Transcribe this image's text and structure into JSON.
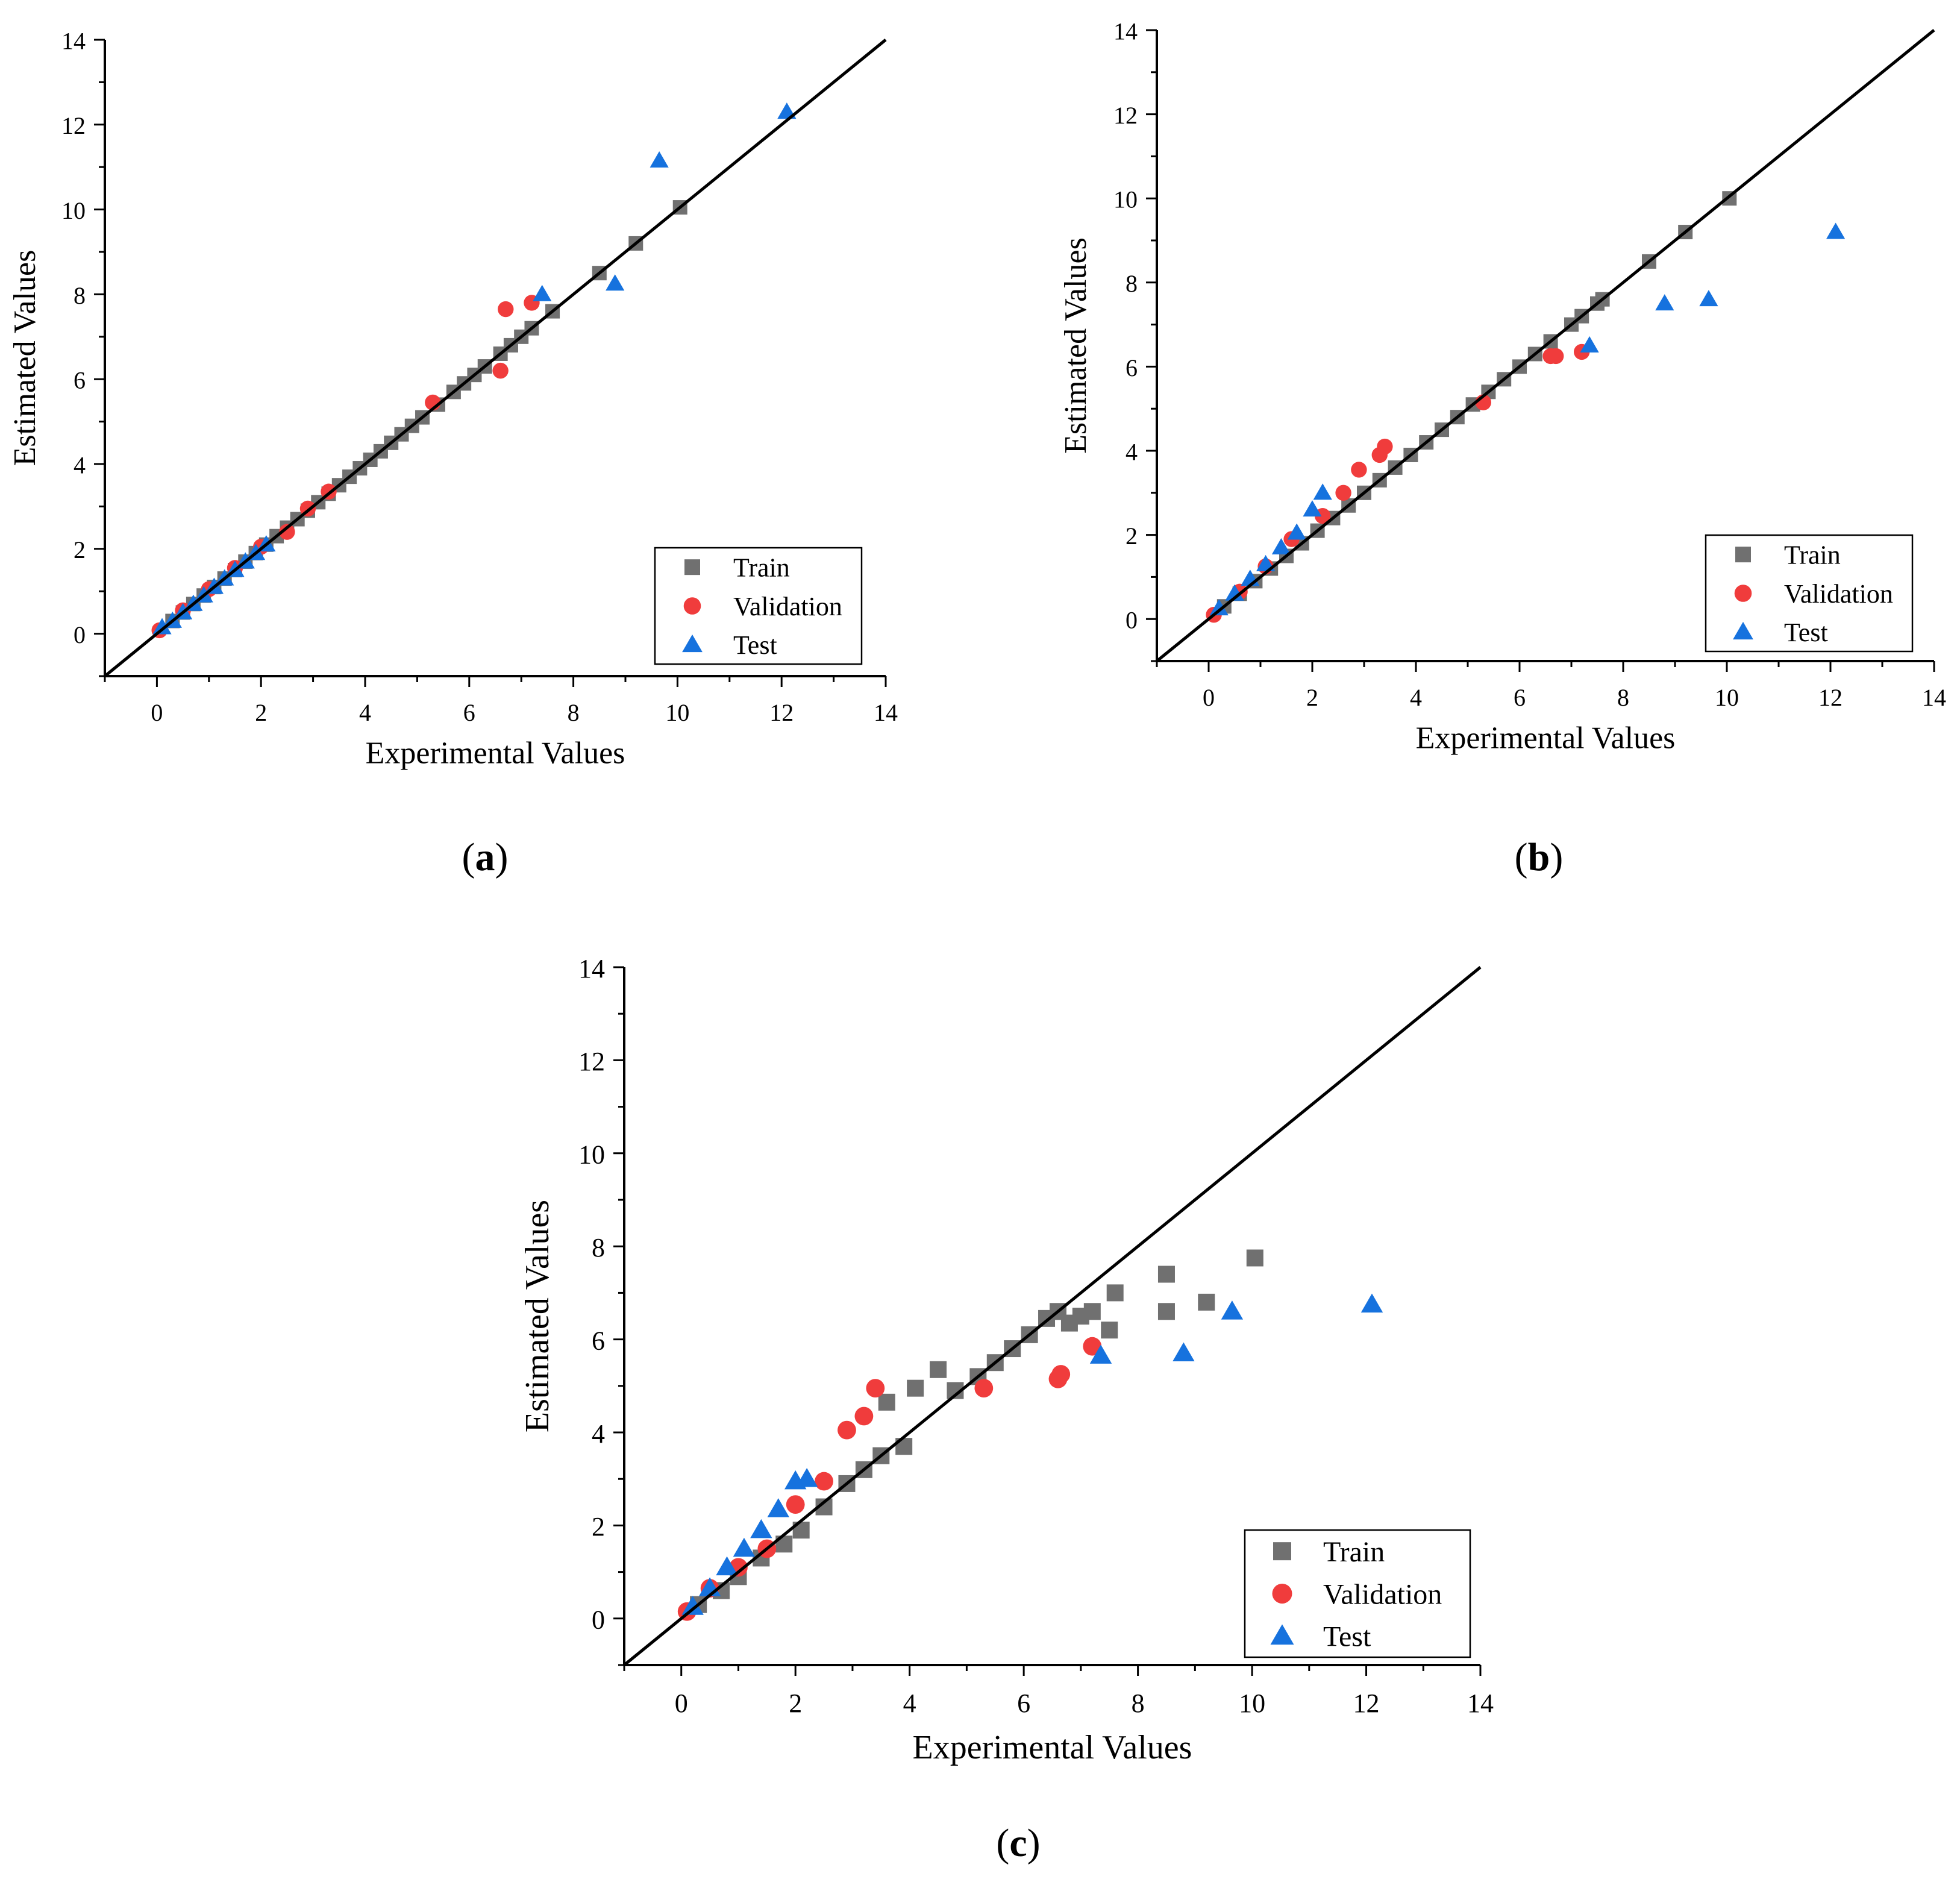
{
  "figure": {
    "colors": {
      "train": "#707070",
      "validation": "#f03c3c",
      "test": "#1672de",
      "axis": "#000000"
    },
    "icons": {
      "train": "square-marker-icon",
      "validation": "circle-marker-icon",
      "test": "triangle-marker-icon"
    }
  },
  "chart_data": [
    {
      "type": "scatter",
      "panel_label": "(a)",
      "panel_letter": "a",
      "xlabel": "Experimental Values",
      "ylabel": "Estimated Values",
      "xlim": [
        -1,
        14
      ],
      "ylim": [
        -1,
        14
      ],
      "xticks": [
        0,
        2,
        4,
        6,
        8,
        10,
        12,
        14
      ],
      "yticks": [
        0,
        2,
        4,
        6,
        8,
        10,
        12,
        14
      ],
      "reference_line": "y = x",
      "legend": [
        "Train",
        "Validation",
        "Test"
      ],
      "legend_position": "bottom-right",
      "series": [
        {
          "name": "Train",
          "marker": "square",
          "x": [
            0.3,
            0.5,
            0.7,
            0.9,
            1.1,
            1.3,
            1.5,
            1.7,
            1.9,
            2.1,
            2.3,
            2.5,
            2.7,
            2.9,
            3.1,
            3.3,
            3.5,
            3.7,
            3.9,
            4.1,
            4.3,
            4.5,
            4.7,
            4.9,
            5.1,
            5.4,
            5.7,
            5.9,
            6.1,
            6.3,
            6.6,
            6.8,
            7.0,
            7.2,
            7.6,
            8.5,
            9.2,
            10.05
          ],
          "y": [
            0.3,
            0.5,
            0.7,
            0.9,
            1.1,
            1.3,
            1.5,
            1.7,
            1.9,
            2.1,
            2.3,
            2.5,
            2.7,
            2.9,
            3.1,
            3.3,
            3.5,
            3.7,
            3.9,
            4.1,
            4.3,
            4.5,
            4.7,
            4.9,
            5.1,
            5.4,
            5.7,
            5.9,
            6.1,
            6.3,
            6.6,
            6.8,
            7.0,
            7.2,
            7.6,
            8.5,
            9.2,
            10.05
          ]
        },
        {
          "name": "Validation",
          "marker": "circle",
          "x": [
            0.05,
            0.5,
            1.0,
            1.5,
            2.0,
            2.5,
            2.9,
            3.3,
            5.3,
            6.6,
            6.7,
            7.2
          ],
          "y": [
            0.08,
            0.55,
            1.05,
            1.55,
            2.05,
            2.4,
            2.95,
            3.35,
            5.45,
            6.2,
            7.65,
            7.8
          ]
        },
        {
          "name": "Test",
          "marker": "triangle",
          "x": [
            0.1,
            0.3,
            0.5,
            0.7,
            0.9,
            1.1,
            1.3,
            1.5,
            1.7,
            1.9,
            2.1,
            7.4,
            8.8,
            9.65,
            12.1
          ],
          "y": [
            0.15,
            0.3,
            0.5,
            0.7,
            0.9,
            1.1,
            1.3,
            1.5,
            1.7,
            1.9,
            2.1,
            8.0,
            8.25,
            11.15,
            12.3
          ]
        }
      ]
    },
    {
      "type": "scatter",
      "panel_label": "(b)",
      "panel_letter": "b",
      "xlabel": "Experimental Values",
      "ylabel": "Estimated Values",
      "xlim": [
        -1,
        14
      ],
      "ylim": [
        -1,
        14
      ],
      "xticks": [
        0,
        2,
        4,
        6,
        8,
        10,
        12,
        14
      ],
      "yticks": [
        0,
        2,
        4,
        6,
        8,
        10,
        12,
        14
      ],
      "reference_line": "y = x",
      "legend": [
        "Train",
        "Validation",
        "Test"
      ],
      "legend_position": "bottom-right",
      "series": [
        {
          "name": "Train",
          "marker": "square",
          "x": [
            0.3,
            0.6,
            0.9,
            1.2,
            1.5,
            1.8,
            2.1,
            2.4,
            2.7,
            3.0,
            3.3,
            3.6,
            3.9,
            4.2,
            4.5,
            4.8,
            5.1,
            5.4,
            5.7,
            6.0,
            6.3,
            6.6,
            7.0,
            7.2,
            7.5,
            7.6,
            8.5,
            9.2,
            10.05
          ],
          "y": [
            0.3,
            0.6,
            0.9,
            1.2,
            1.5,
            1.8,
            2.1,
            2.4,
            2.7,
            3.0,
            3.3,
            3.6,
            3.9,
            4.2,
            4.5,
            4.8,
            5.1,
            5.4,
            5.7,
            6.0,
            6.3,
            6.6,
            7.0,
            7.2,
            7.5,
            7.6,
            8.5,
            9.2,
            10.0
          ]
        },
        {
          "name": "Validation",
          "marker": "circle",
          "x": [
            0.1,
            0.6,
            1.1,
            1.6,
            2.2,
            2.6,
            2.9,
            3.3,
            3.4,
            5.3,
            6.6,
            6.7,
            7.2
          ],
          "y": [
            0.1,
            0.65,
            1.25,
            1.9,
            2.45,
            3.0,
            3.55,
            3.9,
            4.1,
            5.15,
            6.25,
            6.25,
            6.35
          ]
        },
        {
          "name": "Test",
          "marker": "triangle",
          "x": [
            0.2,
            0.5,
            0.8,
            1.1,
            1.4,
            1.7,
            2.0,
            2.2,
            7.35,
            8.8,
            9.65,
            12.1
          ],
          "y": [
            0.25,
            0.6,
            0.95,
            1.3,
            1.7,
            2.05,
            2.6,
            3.0,
            6.5,
            7.5,
            7.6,
            9.2
          ]
        }
      ]
    },
    {
      "type": "scatter",
      "panel_label": "(c)",
      "panel_letter": "c",
      "xlabel": "Experimental Values",
      "ylabel": "Estimated Values",
      "xlim": [
        -1,
        14
      ],
      "ylim": [
        -1,
        14
      ],
      "xticks": [
        0,
        2,
        4,
        6,
        8,
        10,
        12,
        14
      ],
      "yticks": [
        0,
        2,
        4,
        6,
        8,
        10,
        12,
        14
      ],
      "reference_line": "y = x",
      "legend": [
        "Train",
        "Validation",
        "Test"
      ],
      "legend_position": "bottom-right",
      "series": [
        {
          "name": "Train",
          "marker": "square",
          "x": [
            0.3,
            0.7,
            1.0,
            1.4,
            1.8,
            2.1,
            2.5,
            2.9,
            3.2,
            3.5,
            3.6,
            3.9,
            4.1,
            4.5,
            4.8,
            5.2,
            5.5,
            5.8,
            6.1,
            6.4,
            6.6,
            6.8,
            7.0,
            7.2,
            7.5,
            7.6,
            8.5,
            8.5,
            9.2,
            10.05
          ],
          "y": [
            0.3,
            0.6,
            0.9,
            1.3,
            1.6,
            1.9,
            2.4,
            2.9,
            3.2,
            3.5,
            4.65,
            3.7,
            4.95,
            5.35,
            4.9,
            5.2,
            5.5,
            5.8,
            6.1,
            6.45,
            6.6,
            6.35,
            6.5,
            6.6,
            6.2,
            7.0,
            7.4,
            6.6,
            6.8,
            7.75
          ]
        },
        {
          "name": "Validation",
          "marker": "circle",
          "x": [
            0.1,
            0.5,
            1.0,
            1.5,
            2.0,
            2.5,
            2.9,
            3.2,
            3.4,
            5.3,
            6.6,
            6.65,
            7.2
          ],
          "y": [
            0.15,
            0.65,
            1.1,
            1.5,
            2.45,
            2.95,
            4.05,
            4.35,
            4.95,
            4.95,
            5.15,
            5.25,
            5.85
          ]
        },
        {
          "name": "Test",
          "marker": "triangle",
          "x": [
            0.2,
            0.5,
            0.8,
            1.1,
            1.4,
            1.7,
            2.0,
            2.2,
            7.35,
            8.8,
            9.65,
            12.1
          ],
          "y": [
            0.25,
            0.65,
            1.1,
            1.5,
            1.9,
            2.35,
            2.95,
            3.0,
            5.65,
            5.7,
            6.6,
            6.75
          ]
        }
      ]
    }
  ]
}
